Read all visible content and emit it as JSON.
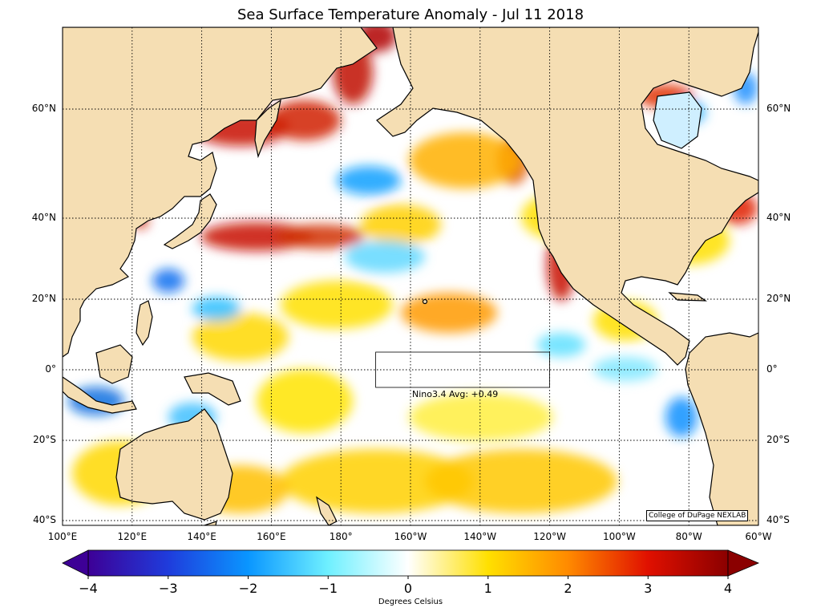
{
  "title": "Sea Surface Temperature Anomaly - Jul 11 2018",
  "colorbar": {
    "label": "Degrees Celsius",
    "ticks": [
      "−4",
      "−3",
      "−2",
      "−1",
      "0",
      "1",
      "2",
      "3",
      "4"
    ],
    "range": [
      -4,
      4
    ],
    "colors": [
      "#3d0096",
      "#1f3cdc",
      "#0a96ff",
      "#6ff0ff",
      "#ffffff",
      "#ffe000",
      "#ff8a00",
      "#e01000",
      "#8b0000"
    ]
  },
  "map": {
    "land_color": "#f5deb3",
    "extent": {
      "lon": [
        100,
        300
      ],
      "lat": [
        -42,
        76
      ]
    },
    "lat_labels": [
      "60°N",
      "40°N",
      "20°N",
      "0°",
      "20°S",
      "40°S"
    ],
    "lon_labels": [
      "100°E",
      "120°E",
      "140°E",
      "160°E",
      "180°",
      "160°W",
      "140°W",
      "120°W",
      "100°W",
      "80°W",
      "60°W"
    ],
    "nino_box": {
      "label": "Nino3.4 Avg: +0.49",
      "lon": [
        190,
        240
      ],
      "lat": [
        -5,
        5
      ]
    },
    "credit": "College of DuPage NEXLAB"
  }
}
